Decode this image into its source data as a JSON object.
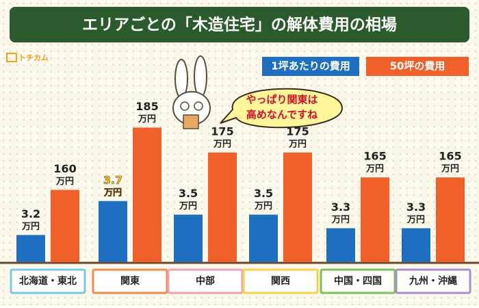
{
  "chart_data": {
    "type": "bar",
    "title": "エリアごとの「木造住宅」の解体費用の相場",
    "logo": "トチカム",
    "bubble": [
      "やっぱり関東は",
      "高めなんですね"
    ],
    "unit": "万円",
    "categories": [
      "北海道・東北",
      "関東",
      "中部",
      "関西",
      "中国・四国",
      "九州・沖縄"
    ],
    "category_colors": [
      "#7cc7e8",
      "#f08a4b",
      "#f2a0b4",
      "#f3d24a",
      "#7dbf5a",
      "#a88bc9"
    ],
    "highlight": 1,
    "series": [
      {
        "name": "1坪あたりの費用",
        "color": "#1f6fc0",
        "values": [
          3.2,
          3.7,
          3.5,
          3.5,
          3.3,
          3.3
        ],
        "ylim": [
          2.8,
          5.15
        ]
      },
      {
        "name": "50坪の費用",
        "color": "#f0602a",
        "values": [
          160,
          185,
          175,
          175,
          165,
          165
        ],
        "ylim": [
          131,
          195
        ]
      }
    ]
  }
}
